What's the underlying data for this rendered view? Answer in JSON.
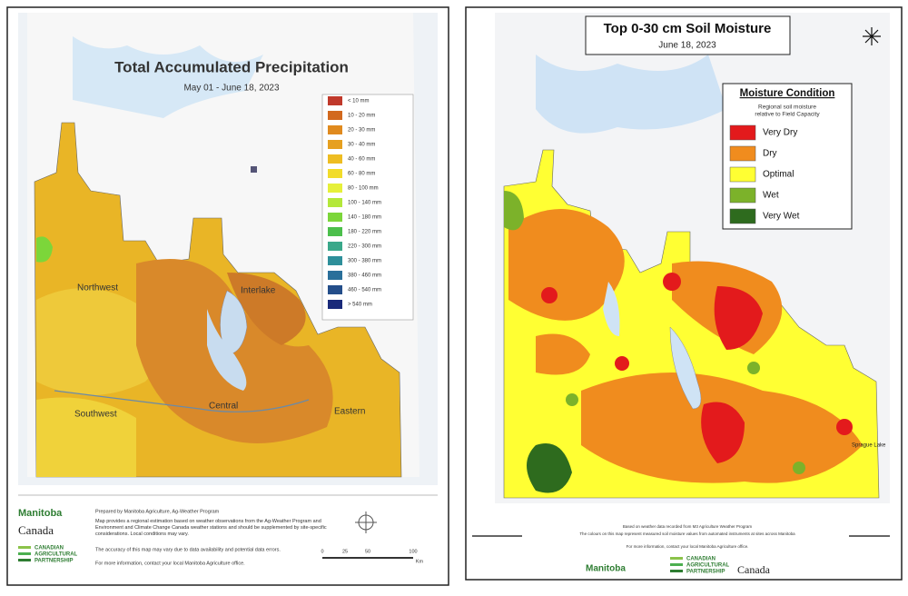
{
  "left_map": {
    "title": "Total Accumulated Precipitation",
    "subtitle": "May 01 - June 18, 2023",
    "legend": [
      {
        "label": "< 10 mm",
        "color": "#c0392b"
      },
      {
        "label": "10 - 20 mm",
        "color": "#d2691e"
      },
      {
        "label": "20 - 30 mm",
        "color": "#e08a1e"
      },
      {
        "label": "30 - 40 mm",
        "color": "#e6a020"
      },
      {
        "label": "40 - 60 mm",
        "color": "#eebd22"
      },
      {
        "label": "60 - 80 mm",
        "color": "#f2dc2a"
      },
      {
        "label": "80 - 100 mm",
        "color": "#e6f03a"
      },
      {
        "label": "100 - 140 mm",
        "color": "#b4e83a"
      },
      {
        "label": "140 - 180 mm",
        "color": "#7cd63a"
      },
      {
        "label": "180 - 220 mm",
        "color": "#4cbf4c"
      },
      {
        "label": "220 - 300 mm",
        "color": "#3aa88a"
      },
      {
        "label": "300 - 380 mm",
        "color": "#2e8f9a"
      },
      {
        "label": "380 - 460 mm",
        "color": "#2a6f9a"
      },
      {
        "label": "460 - 540 mm",
        "color": "#244e8a"
      },
      {
        "label": "> 540 mm",
        "color": "#1a2a7a"
      }
    ],
    "regions": [
      "Northwest",
      "Interlake",
      "Southwest",
      "Central",
      "Eastern"
    ],
    "footer": {
      "prepared_by": "Prepared by Manitoba Agriculture, Ag-Weather Program",
      "description": "Map provides a regional estimation based on weather observations from the Ag-Weather Program and Environment and Climate Change Canada weather stations and should be supplemented by site-specific considerations. Local conditions may vary.",
      "accuracy": "The accuracy of this map may vary due to data availability and potential data errors.",
      "contact": "For more information, contact your local Manitoba Agriculture office.",
      "scale": [
        "0",
        "25",
        "50",
        "100",
        "Km"
      ]
    },
    "logos": {
      "manitoba": "Manitoba",
      "canada": "Canada",
      "partnership": [
        "CANADIAN",
        "AGRICULTURAL",
        "PARTNERSHIP"
      ]
    }
  },
  "right_map": {
    "title": "Top 0-30 cm Soil Moisture",
    "subtitle": "June 18, 2023",
    "legend_title": "Moisture Condition",
    "legend_subtitle": [
      "Regional soil moisture",
      "relative to Field Capacity"
    ],
    "legend": [
      {
        "label": "Very Dry",
        "color": "#e31a1c"
      },
      {
        "label": "Dry",
        "color": "#f08c1e"
      },
      {
        "label": "Optimal",
        "color": "#ffff33"
      },
      {
        "label": "Wet",
        "color": "#7cb22a"
      },
      {
        "label": "Very Wet",
        "color": "#2e6b1e"
      }
    ],
    "place": "Sprague Lake",
    "footer": {
      "source": "Based on weather data recorded from M3 Agriculture Weather Program",
      "note": "The colours on this map represent measured soil moisture values from automated instruments at sites across Manitoba",
      "contact": "For more information, contact your local Manitoba Agriculture office."
    },
    "logos": {
      "manitoba": "Manitoba",
      "canada": "Canada",
      "partnership": [
        "CANADIAN",
        "AGRICULTURAL",
        "PARTNERSHIP"
      ]
    }
  }
}
